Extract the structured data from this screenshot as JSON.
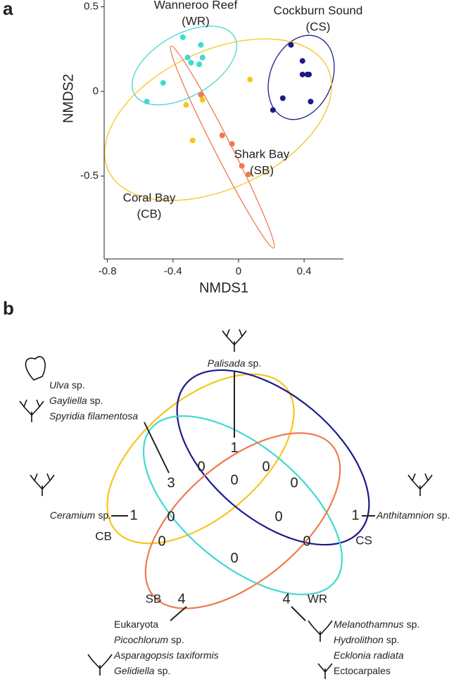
{
  "chart_data": {
    "type": "scatter",
    "label": "a",
    "xlabel": "NMDS1",
    "ylabel": "NMDS2",
    "xlim": [
      -0.82,
      0.64
    ],
    "ylim": [
      -0.99,
      0.54
    ],
    "xticks": [
      -0.8,
      -0.4,
      0,
      0.4
    ],
    "yticks": [
      0.5,
      0,
      -0.5
    ],
    "series": [
      {
        "name": "Wanneroo Reef",
        "abbr": "(WR)",
        "color": "#40d9d2",
        "x": [
          -0.34,
          -0.23,
          -0.31,
          -0.22,
          -0.29,
          -0.24,
          -0.46,
          -0.56
        ],
        "y": [
          0.32,
          0.275,
          0.2,
          0.2,
          0.17,
          0.16,
          0.05,
          -0.06
        ]
      },
      {
        "name": "Cockburn Sound",
        "abbr": "(CS)",
        "color": "#1b1b8a",
        "x": [
          0.32,
          0.39,
          0.39,
          0.43,
          0.42,
          0.27,
          0.44,
          0.21
        ],
        "y": [
          0.275,
          0.18,
          0.1,
          0.1,
          0.1,
          -0.04,
          -0.06,
          -0.11
        ]
      },
      {
        "name": "Coral Bay",
        "abbr": "(CB)",
        "color": "#f7c51e",
        "x": [
          0.07,
          -0.32,
          -0.22,
          -0.28
        ],
        "y": [
          0.07,
          -0.08,
          -0.05,
          -0.29
        ]
      },
      {
        "name": "Shark Bay",
        "abbr": "(SB)",
        "color": "#f07a4f",
        "x": [
          -0.23,
          -0.1,
          -0.04,
          0.02,
          0.06
        ],
        "y": [
          -0.02,
          -0.26,
          -0.31,
          -0.44,
          -0.49
        ]
      }
    ]
  },
  "venn": {
    "label": "b",
    "sets": [
      {
        "label": "CB",
        "color": "#f7c51e"
      },
      {
        "label": "CS",
        "color": "#1b1b8a"
      },
      {
        "label": "SB",
        "color": "#f07a4f"
      },
      {
        "label": "WR",
        "color": "#40d9d2"
      }
    ],
    "counts": [
      1,
      3,
      0,
      0,
      0,
      0,
      1,
      0,
      0,
      1,
      0,
      0,
      0,
      4,
      4
    ],
    "species": [
      [
        {
          "italic": "Palisada",
          "plain": "sp."
        }
      ],
      [
        {
          "italic": "Ulva",
          "plain": "sp."
        },
        {
          "italic": "Gayliella",
          "plain": "sp."
        },
        {
          "italic": "Spyridia filamentosa"
        }
      ],
      [
        {
          "italic": "Ceramium",
          "plain": "sp."
        }
      ],
      [
        {
          "italic": "Anthitamnion",
          "plain": "sp."
        }
      ],
      [
        {
          "plain": "Eukaryota"
        },
        {
          "italic": "Picochlorum",
          "plain": "sp."
        },
        {
          "italic": "Asparagopsis taxiformis"
        },
        {
          "italic": "Gelidiella",
          "plain": "sp."
        }
      ],
      [
        {
          "italic": "Melanothamnus",
          "plain": "sp."
        },
        {
          "italic": "Hydrolithon",
          "plain": "sp."
        },
        {
          "italic": "Ecklonia radiata"
        },
        {
          "plain": "Ectocarpales"
        }
      ]
    ]
  }
}
